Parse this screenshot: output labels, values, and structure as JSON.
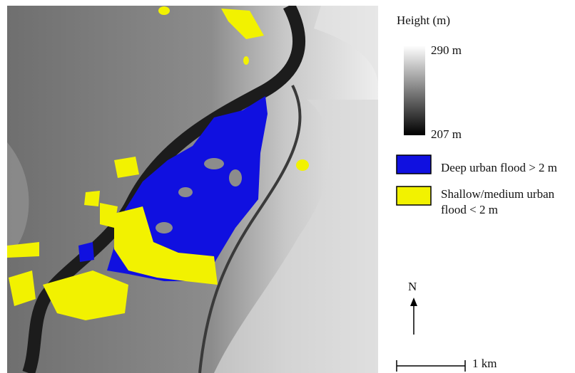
{
  "legend": {
    "title": "Height (m)",
    "max_label": "290 m",
    "min_label": "207 m",
    "items": [
      {
        "label": "Deep urban flood > 2 m"
      },
      {
        "label_lines": [
          "Shallow/medium urban",
          "flood < 2 m"
        ]
      }
    ]
  },
  "north": "N",
  "scale_bar": "1 km"
}
